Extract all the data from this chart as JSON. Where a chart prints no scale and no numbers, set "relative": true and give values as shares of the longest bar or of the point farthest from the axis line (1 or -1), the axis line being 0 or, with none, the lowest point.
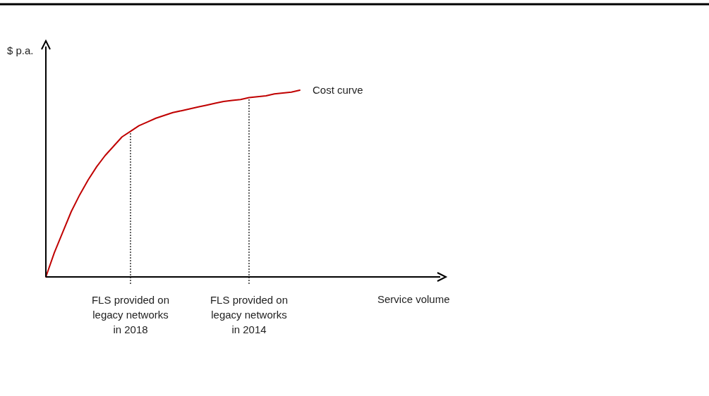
{
  "chart_data": {
    "type": "line",
    "relative": true,
    "annotations": [
      "Service volume"
    ],
    "ylabel": "$ p.a.",
    "categories": [
      null,
      null,
      null,
      null,
      null,
      null,
      null,
      null,
      null,
      null,
      "FLS provided on legacy networks in 2018",
      null,
      null,
      null,
      null,
      null,
      null,
      null,
      null,
      null,
      null,
      null,
      null,
      null,
      "FLS provided on legacy networks in 2014",
      null,
      null,
      null,
      null,
      null,
      null
    ],
    "series": [
      {
        "name": "Cost curve",
        "color": "#c00000",
        "values": [
          0,
          0.13,
          0.24,
          0.35,
          0.44,
          0.52,
          0.59,
          0.65,
          0.7,
          0.75,
          0.78,
          0.81,
          0.83,
          0.85,
          0.865,
          0.88,
          0.89,
          0.9,
          0.91,
          0.92,
          0.93,
          0.94,
          0.945,
          0.95,
          0.96,
          0.965,
          0.97,
          0.98,
          0.985,
          0.99,
          1
        ]
      }
    ],
    "ref_lines": [
      {
        "axis": "x",
        "value": "FLS provided on legacy networks in 2018",
        "line_style": "dotted"
      },
      {
        "axis": "x",
        "value": "FLS provided on legacy networks in 2014",
        "line_style": "dotted"
      }
    ]
  }
}
